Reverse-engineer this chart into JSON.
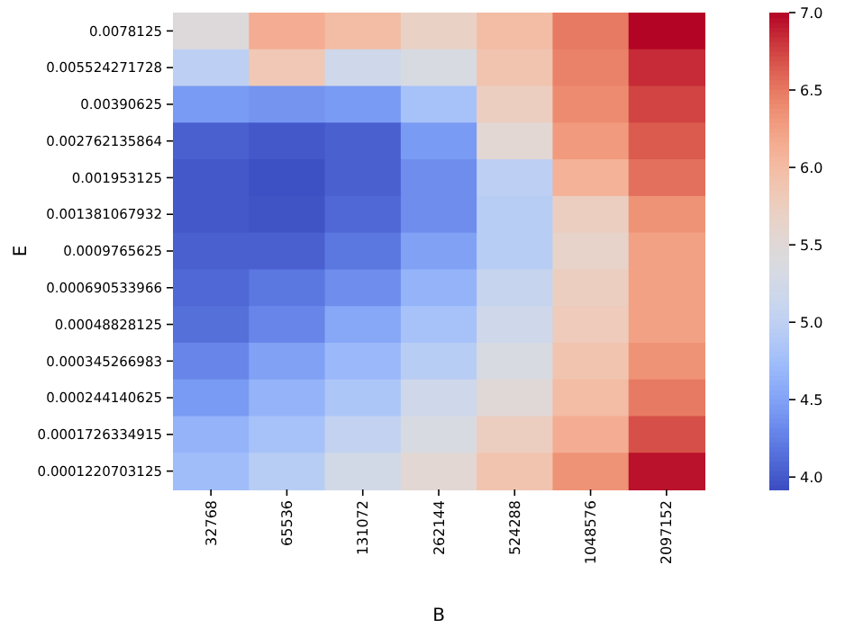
{
  "chart_data": {
    "type": "heatmap",
    "xlabel": "B",
    "ylabel": "E",
    "categories": [
      "32768",
      "65536",
      "131072",
      "262144",
      "524288",
      "1048576",
      "2097152"
    ],
    "y_categories": [
      "0.0078125",
      "0.005524271728",
      "0.00390625",
      "0.002762135864",
      "0.001953125",
      "0.001381067932",
      "0.0009765625",
      "0.000690533966",
      "0.00048828125",
      "0.000345266983",
      "0.000244140625",
      "0.0001726334915",
      "0.0001220703125"
    ],
    "cells": [
      [
        5.45,
        6.15,
        6.0,
        5.7,
        6.0,
        6.5,
        7.0
      ],
      [
        5.0,
        5.85,
        5.2,
        5.35,
        5.9,
        6.45,
        6.85
      ],
      [
        4.45,
        4.4,
        4.45,
        4.8,
        5.75,
        6.4,
        6.75
      ],
      [
        4.05,
        4.0,
        4.05,
        4.45,
        5.55,
        6.3,
        6.65
      ],
      [
        4.0,
        3.95,
        4.05,
        4.35,
        5.0,
        6.1,
        6.55
      ],
      [
        4.0,
        3.97,
        4.1,
        4.35,
        4.95,
        5.75,
        6.35
      ],
      [
        4.05,
        4.05,
        4.2,
        4.5,
        4.95,
        5.65,
        6.25
      ],
      [
        4.1,
        4.2,
        4.35,
        4.65,
        5.1,
        5.75,
        6.25
      ],
      [
        4.15,
        4.3,
        4.55,
        4.8,
        5.2,
        5.8,
        6.25
      ],
      [
        4.3,
        4.5,
        4.7,
        4.95,
        5.35,
        5.9,
        6.35
      ],
      [
        4.45,
        4.65,
        4.85,
        5.2,
        5.5,
        6.0,
        6.5
      ],
      [
        4.65,
        4.8,
        5.05,
        5.35,
        5.75,
        6.15,
        6.7
      ],
      [
        4.75,
        4.95,
        5.25,
        5.55,
        5.9,
        6.35,
        6.95
      ]
    ],
    "clim": [
      3.92,
      7.0
    ],
    "cticks": [
      {
        "value": 4.0,
        "label": "4.0"
      },
      {
        "value": 4.5,
        "label": "4.5"
      },
      {
        "value": 5.0,
        "label": "5.0"
      },
      {
        "value": 5.5,
        "label": "5.5"
      },
      {
        "value": 6.0,
        "label": "6.0"
      },
      {
        "value": 6.5,
        "label": "6.5"
      },
      {
        "value": 7.0,
        "label": "7.0"
      }
    ]
  }
}
